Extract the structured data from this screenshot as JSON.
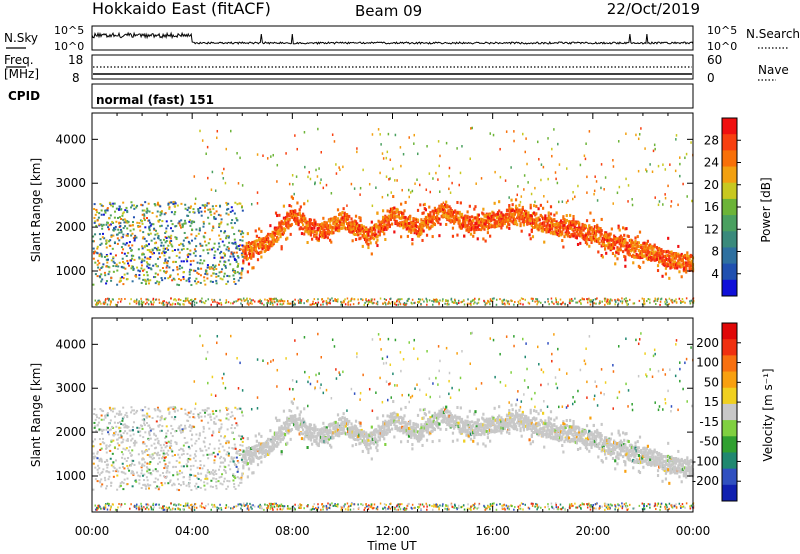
{
  "header": {
    "title": "Hokkaido East (fitACF)",
    "beam": "Beam 09",
    "date": "22/Oct/2019"
  },
  "noise_panel": {
    "left_label": "N.Sky",
    "right_label": "N.Search",
    "ticks_left": [
      "10^5",
      "10^0"
    ],
    "ticks_right": [
      "10^5",
      "10^0"
    ]
  },
  "freq_panel": {
    "left_label_1": "Freq.",
    "left_label_2": "[MHz]",
    "ticks_left": [
      "18",
      "8"
    ],
    "right_label": "Nave",
    "ticks_right": [
      "60",
      "0"
    ]
  },
  "cpid_panel": {
    "left_label": "CPID",
    "mode_text": "normal (fast) 151"
  },
  "chart_data": [
    {
      "type": "heatmap",
      "title": "",
      "ylabel": "Slant Range [km]",
      "xlabel": "",
      "x_range_hours": [
        0,
        24
      ],
      "ylim": [
        180,
        4600
      ],
      "y_ticks": [
        "1000",
        "2000",
        "3000",
        "4000"
      ],
      "colorbar": {
        "label": "Power [dB]",
        "ticks": [
          "4",
          "8",
          "12",
          "16",
          "20",
          "24",
          "28"
        ],
        "range": [
          0,
          30
        ],
        "colors": [
          "#1010d8",
          "#2050b0",
          "#2e70a0",
          "#3a8a7c",
          "#4aa060",
          "#6cb438",
          "#c8c820",
          "#f2a010",
          "#f87008",
          "#f84010",
          "#f01010"
        ]
      },
      "scatter_features": [
        {
          "name": "main F-region echo band",
          "range_km_by_hour": [
            [
              6,
              1400
            ],
            [
              7,
              1700
            ],
            [
              8,
              2300
            ],
            [
              9,
              1900
            ],
            [
              10,
              2200
            ],
            [
              11,
              1800
            ],
            [
              12,
              2300
            ],
            [
              13,
              2000
            ],
            [
              14,
              2400
            ],
            [
              15,
              2100
            ],
            [
              16,
              2200
            ],
            [
              17,
              2300
            ],
            [
              18,
              2100
            ],
            [
              19,
              2000
            ],
            [
              20,
              1900
            ],
            [
              21,
              1600
            ],
            [
              22,
              1500
            ],
            [
              23,
              1300
            ],
            [
              24,
              1200
            ]
          ],
          "power_db": 27
        },
        {
          "name": "early low-power scatter",
          "hours": [
            0,
            6
          ],
          "range_km": [
            700,
            2600
          ],
          "power_db": 9
        },
        {
          "name": "near-range ground/meteor echoes",
          "hours": [
            0,
            24
          ],
          "range_km": [
            250,
            400
          ],
          "power_db": 20
        }
      ]
    },
    {
      "type": "heatmap",
      "title": "",
      "ylabel": "Slant Range [km]",
      "xlabel": "Time UT",
      "x_ticks": [
        "00:00",
        "04:00",
        "08:00",
        "12:00",
        "16:00",
        "20:00",
        "00:00"
      ],
      "x_range_hours": [
        0,
        24
      ],
      "ylim": [
        180,
        4600
      ],
      "y_ticks": [
        "1000",
        "2000",
        "3000",
        "4000"
      ],
      "colorbar": {
        "label": "Velocity [m s⁻¹]",
        "ticks": [
          "200",
          "100",
          "50",
          "15",
          "-15",
          "-50",
          "-100",
          "-200"
        ],
        "range": [
          -250,
          250
        ],
        "colors": [
          "#1020b0",
          "#3050c0",
          "#208870",
          "#30a030",
          "#80d040",
          "#c8c8c8",
          "#f0d020",
          "#f8a010",
          "#f87010",
          "#f03010",
          "#e00808"
        ]
      },
      "scatter_features": [
        {
          "name": "main echo band (near-zero velocity)",
          "velocity_ms": 0
        },
        {
          "name": "early low-velocity scatter",
          "hours": [
            0,
            6
          ],
          "range_km": [
            700,
            2600
          ],
          "velocity_ms": -10
        }
      ]
    }
  ]
}
